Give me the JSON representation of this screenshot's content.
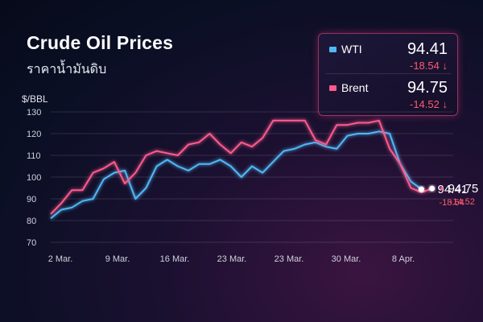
{
  "title": "Crude Oil Prices",
  "subtitle": "ราคาน้ำมันดิบ",
  "colors": {
    "wti": "#4fb8f5",
    "brent": "#ff5a8c",
    "down": "#ff5a6e"
  },
  "legend": [
    {
      "name": "WTI",
      "value": "94.41",
      "change": "-18.54",
      "arrow": "↓"
    },
    {
      "name": "Brent",
      "value": "94.75",
      "change": "-14.52",
      "arrow": "↓"
    }
  ],
  "chart_data": {
    "type": "line",
    "ylabel": "$/BBL",
    "ylim": [
      70,
      130
    ],
    "yticks": [
      130,
      120,
      110,
      100,
      90,
      80,
      70
    ],
    "x_tick_labels": [
      "2 Mar.",
      "9 Mar.",
      "16 Mar.",
      "23 Mar.",
      "23 Mar.",
      "30 Mar.",
      "8 Apr."
    ],
    "x": [
      0,
      1,
      2,
      3,
      4,
      5,
      6,
      7,
      8,
      9,
      10,
      11,
      12,
      13,
      14,
      15,
      16,
      17,
      18,
      19,
      20,
      21,
      22,
      23,
      24,
      25,
      26,
      27,
      28,
      29,
      30,
      31,
      32,
      33,
      34,
      35,
      36,
      37,
      38
    ],
    "grid": true,
    "series": [
      {
        "name": "WTI",
        "values": [
          81,
          85,
          86,
          89,
          90,
          99,
          102,
          103,
          90,
          95,
          105,
          108,
          105,
          103,
          106,
          106,
          108,
          105,
          100,
          105,
          102,
          107,
          112,
          113,
          115,
          116,
          114,
          113,
          119,
          120,
          120,
          121,
          120,
          106,
          98,
          94.41,
          null,
          null,
          null
        ],
        "end_label": {
          "value": "94.41",
          "change": "-18.54"
        }
      },
      {
        "name": "Brent",
        "values": [
          83,
          88,
          94,
          94,
          102,
          104,
          107,
          97,
          102,
          110,
          112,
          111,
          110,
          115,
          116,
          120,
          115,
          111,
          116,
          114,
          118,
          126,
          126,
          126,
          126,
          117,
          115,
          124,
          124,
          125,
          125,
          126,
          113,
          106,
          95,
          93,
          94.75,
          null,
          null
        ],
        "end_label": {
          "value": "94.75",
          "change": "-14.52"
        }
      }
    ]
  }
}
